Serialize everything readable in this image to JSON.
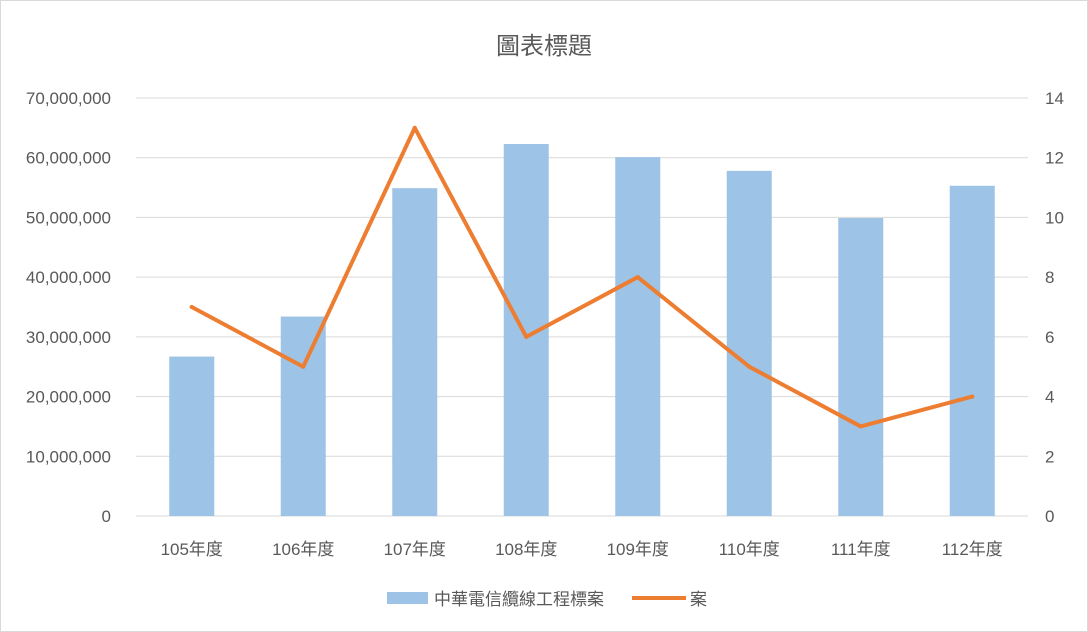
{
  "colors": {
    "bar": "#9dc3e6",
    "line": "#ed7d31",
    "grid": "#d9d9d9",
    "text": "#595959"
  },
  "chart_data": {
    "type": "bar",
    "title": "圖表標題",
    "categories": [
      "105年度",
      "106年度",
      "107年度",
      "108年度",
      "109年度",
      "110年度",
      "111年度",
      "112年度"
    ],
    "series": [
      {
        "name": "中華電信纜線工程標案",
        "type": "bar",
        "axis": "left",
        "values": [
          26700000,
          33400000,
          54900000,
          62300000,
          60100000,
          57800000,
          49900000,
          55300000
        ]
      },
      {
        "name": "案",
        "type": "line",
        "axis": "right",
        "values": [
          7,
          5,
          13,
          6,
          8,
          5,
          3,
          4
        ]
      }
    ],
    "y_left": {
      "range": [
        0,
        70000000
      ],
      "ticks": [
        "0",
        "10,000,000",
        "20,000,000",
        "30,000,000",
        "40,000,000",
        "50,000,000",
        "60,000,000",
        "70,000,000"
      ]
    },
    "y_right": {
      "range": [
        0,
        14
      ],
      "ticks": [
        "0",
        "2",
        "4",
        "6",
        "8",
        "10",
        "12",
        "14"
      ]
    },
    "grid": true,
    "legend_position": "bottom"
  }
}
